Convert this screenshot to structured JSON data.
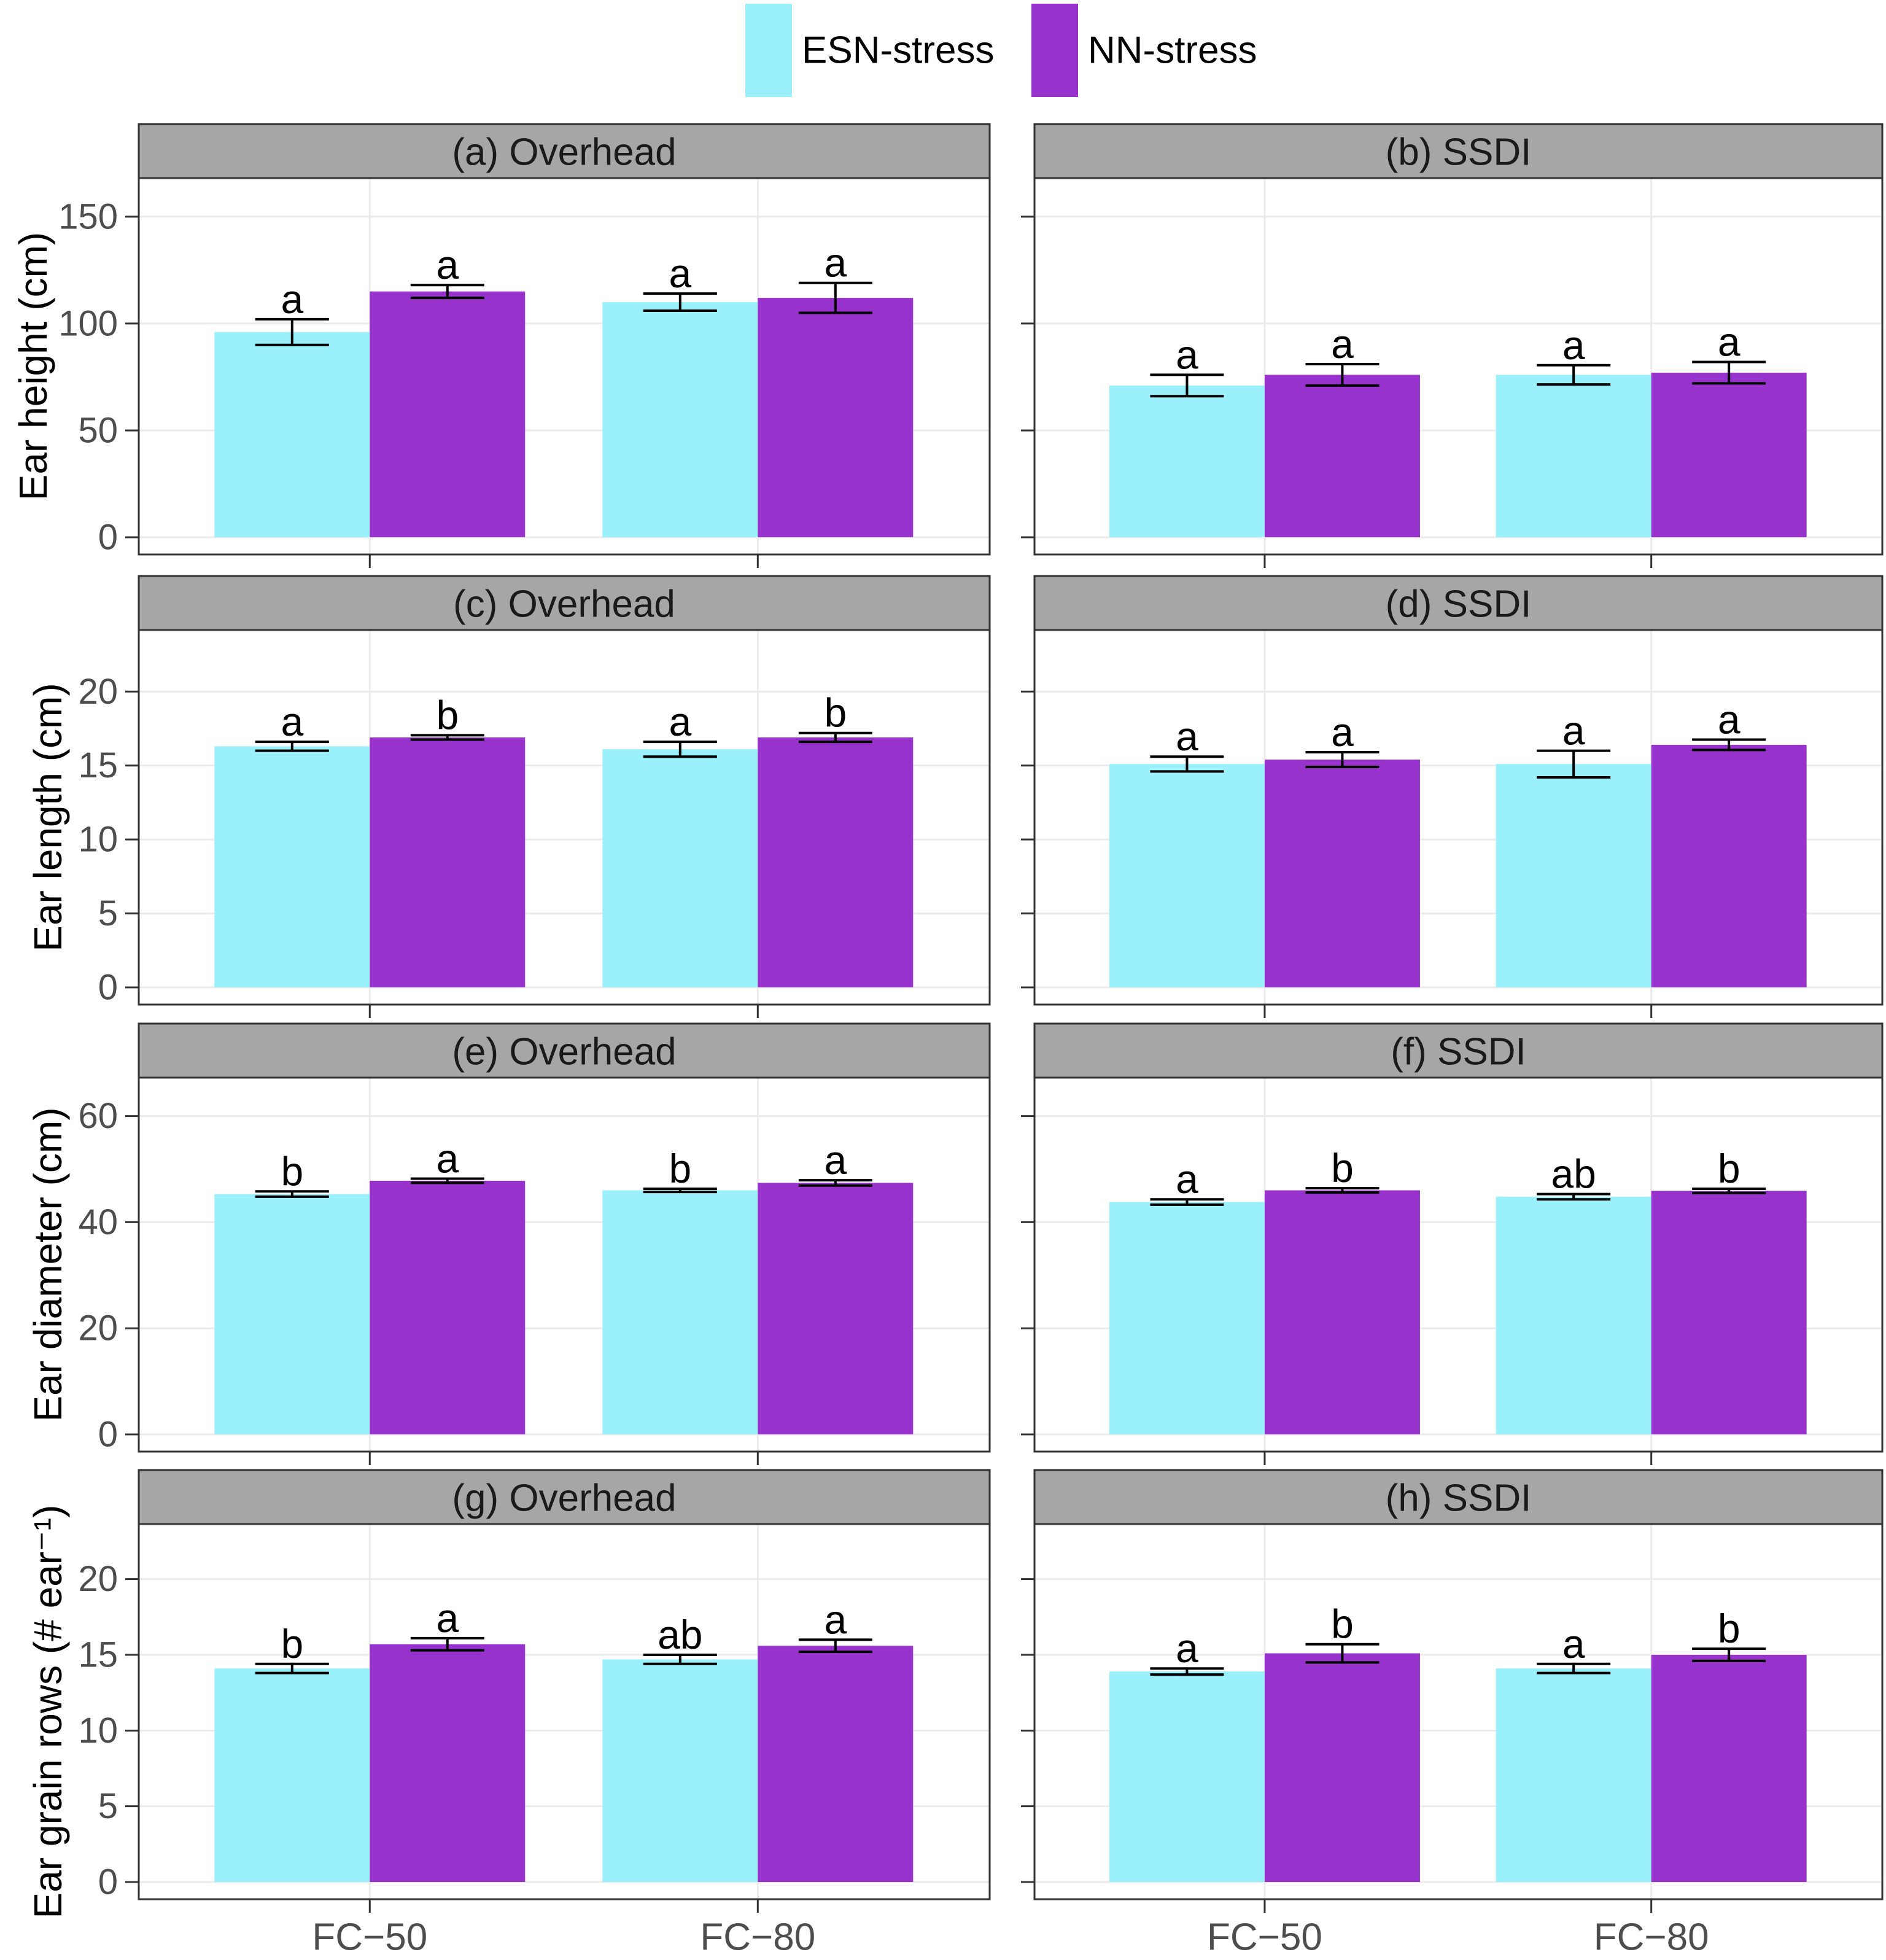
{
  "chart_data": {
    "type": "bar",
    "legend": {
      "position": "top",
      "entries": [
        {
          "name": "ESN-stress",
          "color": "#9AF1FC"
        },
        {
          "name": "NN-stress",
          "color": "#9832CC"
        }
      ]
    },
    "categories": [
      "FC−50",
      "FC−80"
    ],
    "series": [
      "ESN-stress",
      "NN-stress"
    ],
    "rows": [
      {
        "ylabel": "Ear height (cm)",
        "ylim": [
          0,
          160
        ],
        "yticks": [
          0,
          50,
          100,
          150
        ],
        "tick_labels": [
          "0",
          "50",
          "100",
          "150"
        ],
        "panels": [
          {
            "title": "(a) Overhead",
            "bars": [
              {
                "category": "FC−50",
                "series": "ESN-stress",
                "value": 96,
                "err": 6,
                "letter": "a"
              },
              {
                "category": "FC−50",
                "series": "NN-stress",
                "value": 115,
                "err": 3,
                "letter": "a"
              },
              {
                "category": "FC−80",
                "series": "ESN-stress",
                "value": 110,
                "err": 4,
                "letter": "a"
              },
              {
                "category": "FC−80",
                "series": "NN-stress",
                "value": 112,
                "err": 7,
                "letter": "a"
              }
            ]
          },
          {
            "title": "(b) SSDI",
            "bars": [
              {
                "category": "FC−50",
                "series": "ESN-stress",
                "value": 71,
                "err": 5,
                "letter": "a"
              },
              {
                "category": "FC−50",
                "series": "NN-stress",
                "value": 76,
                "err": 5,
                "letter": "a"
              },
              {
                "category": "FC−80",
                "series": "ESN-stress",
                "value": 76,
                "err": 4.5,
                "letter": "a"
              },
              {
                "category": "FC−80",
                "series": "NN-stress",
                "value": 77,
                "err": 5,
                "letter": "a"
              }
            ]
          }
        ]
      },
      {
        "ylabel": "Ear length (cm)",
        "ylim": [
          0,
          23
        ],
        "yticks": [
          0,
          5,
          10,
          15,
          20
        ],
        "tick_labels": [
          "0",
          "5",
          "10",
          "15",
          "20"
        ],
        "panels": [
          {
            "title": "(c) Overhead",
            "bars": [
              {
                "category": "FC−50",
                "series": "ESN-stress",
                "value": 16.3,
                "err": 0.3,
                "letter": "a"
              },
              {
                "category": "FC−50",
                "series": "NN-stress",
                "value": 16.9,
                "err": 0.15,
                "letter": "b"
              },
              {
                "category": "FC−80",
                "series": "ESN-stress",
                "value": 16.1,
                "err": 0.5,
                "letter": "a"
              },
              {
                "category": "FC−80",
                "series": "NN-stress",
                "value": 16.9,
                "err": 0.3,
                "letter": "b"
              }
            ]
          },
          {
            "title": "(d) SSDI",
            "bars": [
              {
                "category": "FC−50",
                "series": "ESN-stress",
                "value": 15.1,
                "err": 0.5,
                "letter": "a"
              },
              {
                "category": "FC−50",
                "series": "NN-stress",
                "value": 15.4,
                "err": 0.5,
                "letter": "a"
              },
              {
                "category": "FC−80",
                "series": "ESN-stress",
                "value": 15.1,
                "err": 0.9,
                "letter": "a"
              },
              {
                "category": "FC−80",
                "series": "NN-stress",
                "value": 16.4,
                "err": 0.35,
                "letter": "a"
              }
            ]
          }
        ]
      },
      {
        "ylabel": "Ear diameter (cm)",
        "ylim": [
          0,
          64
        ],
        "yticks": [
          0,
          20,
          40,
          60
        ],
        "tick_labels": [
          "0",
          "20",
          "40",
          "60"
        ],
        "panels": [
          {
            "title": "(e) Overhead",
            "bars": [
              {
                "category": "FC−50",
                "series": "ESN-stress",
                "value": 45.3,
                "err": 0.5,
                "letter": "b"
              },
              {
                "category": "FC−50",
                "series": "NN-stress",
                "value": 47.8,
                "err": 0.4,
                "letter": "a"
              },
              {
                "category": "FC−80",
                "series": "ESN-stress",
                "value": 46.0,
                "err": 0.3,
                "letter": "b"
              },
              {
                "category": "FC−80",
                "series": "NN-stress",
                "value": 47.4,
                "err": 0.5,
                "letter": "a"
              }
            ]
          },
          {
            "title": "(f) SSDI",
            "bars": [
              {
                "category": "FC−50",
                "series": "ESN-stress",
                "value": 43.8,
                "err": 0.5,
                "letter": "a"
              },
              {
                "category": "FC−50",
                "series": "NN-stress",
                "value": 46.0,
                "err": 0.4,
                "letter": "b"
              },
              {
                "category": "FC−80",
                "series": "ESN-stress",
                "value": 44.8,
                "err": 0.5,
                "letter": "ab"
              },
              {
                "category": "FC−80",
                "series": "NN-stress",
                "value": 45.9,
                "err": 0.4,
                "letter": "b"
              }
            ]
          }
        ]
      },
      {
        "ylabel": "Ear grain rows (# ear⁻¹)",
        "ylim": [
          0,
          22.5
        ],
        "yticks": [
          0,
          5,
          10,
          15,
          20
        ],
        "tick_labels": [
          "0",
          "5",
          "10",
          "15",
          "20"
        ],
        "panels": [
          {
            "title": "(g) Overhead",
            "bars": [
              {
                "category": "FC−50",
                "series": "ESN-stress",
                "value": 14.1,
                "err": 0.3,
                "letter": "b"
              },
              {
                "category": "FC−50",
                "series": "NN-stress",
                "value": 15.7,
                "err": 0.4,
                "letter": "a"
              },
              {
                "category": "FC−80",
                "series": "ESN-stress",
                "value": 14.7,
                "err": 0.3,
                "letter": "ab"
              },
              {
                "category": "FC−80",
                "series": "NN-stress",
                "value": 15.6,
                "err": 0.4,
                "letter": "a"
              }
            ]
          },
          {
            "title": "(h) SSDI",
            "bars": [
              {
                "category": "FC−50",
                "series": "ESN-stress",
                "value": 13.9,
                "err": 0.2,
                "letter": "a"
              },
              {
                "category": "FC−50",
                "series": "NN-stress",
                "value": 15.1,
                "err": 0.6,
                "letter": "b"
              },
              {
                "category": "FC−80",
                "series": "ESN-stress",
                "value": 14.1,
                "err": 0.3,
                "letter": "a"
              },
              {
                "category": "FC−80",
                "series": "NN-stress",
                "value": 15.0,
                "err": 0.4,
                "letter": "b"
              }
            ]
          }
        ]
      }
    ]
  }
}
